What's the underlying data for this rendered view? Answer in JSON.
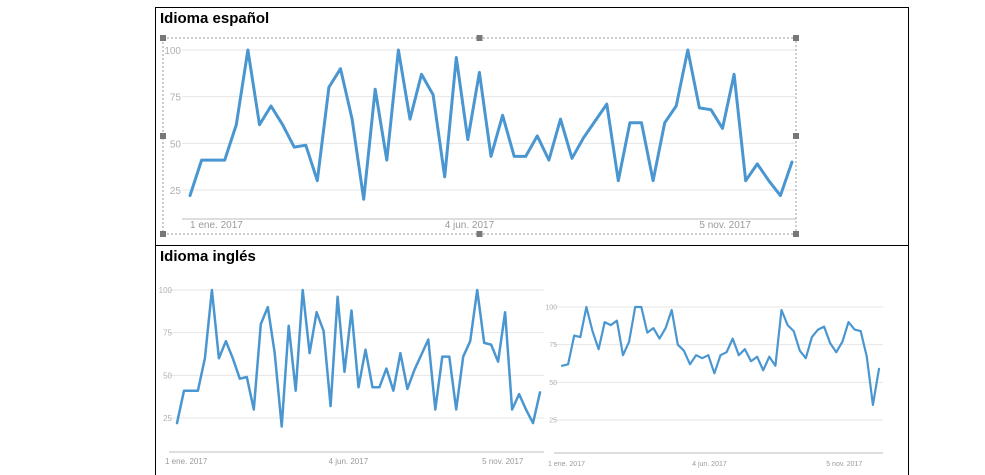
{
  "panels": {
    "spanish_title": "Idioma español",
    "english_title": "Idioma inglés"
  },
  "colors": {
    "series": "#4a96d1",
    "grid": "#e6e6e6",
    "frame": "#000000"
  },
  "chart_data": [
    {
      "type": "line",
      "title": "",
      "ylim": [
        0,
        100
      ],
      "y_ticks": [
        25,
        50,
        75,
        100
      ],
      "x_tick_labels": [
        "1 ene. 2017",
        "4 jun. 2017",
        "5 nov. 2017"
      ],
      "x_tick_index": [
        0,
        22,
        44
      ],
      "grid": true,
      "series": [
        {
          "values": [
            22,
            41,
            41,
            41,
            60,
            100,
            60,
            70,
            60,
            48,
            49,
            30,
            80,
            90,
            63,
            20,
            79,
            41,
            100,
            63,
            87,
            76,
            32,
            96,
            52,
            88,
            43,
            65,
            43,
            43,
            54,
            41,
            63,
            42,
            53,
            62,
            71,
            30,
            61,
            61,
            30,
            61,
            70,
            100,
            69,
            68,
            58,
            87,
            30,
            39,
            30,
            22,
            40
          ]
        }
      ]
    },
    {
      "type": "line",
      "title": "",
      "ylim": [
        0,
        100
      ],
      "y_ticks": [
        25,
        50,
        75,
        100
      ],
      "x_tick_labels": [
        "1 ene. 2017",
        "4 jun. 2017",
        "5 nov. 2017"
      ],
      "x_tick_index": [
        0,
        22,
        44
      ],
      "grid": true,
      "series": [
        {
          "values": [
            22,
            41,
            41,
            41,
            60,
            100,
            60,
            70,
            60,
            48,
            49,
            30,
            80,
            90,
            63,
            20,
            79,
            41,
            100,
            63,
            87,
            76,
            32,
            96,
            52,
            88,
            43,
            65,
            43,
            43,
            54,
            41,
            63,
            42,
            53,
            62,
            71,
            30,
            61,
            61,
            30,
            61,
            70,
            100,
            69,
            68,
            58,
            87,
            30,
            39,
            30,
            22,
            40
          ]
        }
      ]
    },
    {
      "type": "line",
      "title": "",
      "ylim": [
        0,
        100
      ],
      "y_ticks": [
        25,
        50,
        75,
        100
      ],
      "x_tick_labels": [
        "1 ene. 2017",
        "4 jun. 2017",
        "5 nov. 2017"
      ],
      "x_tick_index": [
        0,
        22,
        44
      ],
      "grid": true,
      "series": [
        {
          "values": [
            61,
            62,
            81,
            80,
            100,
            84,
            72,
            90,
            88,
            91,
            68,
            77,
            100,
            100,
            83,
            86,
            79,
            86,
            98,
            75,
            71,
            62,
            68,
            66,
            68,
            56,
            68,
            70,
            79,
            68,
            72,
            64,
            67,
            58,
            67,
            61,
            98,
            88,
            84,
            71,
            66,
            80,
            85,
            87,
            76,
            70,
            77,
            90,
            85,
            84,
            67,
            35,
            59
          ]
        }
      ]
    }
  ]
}
